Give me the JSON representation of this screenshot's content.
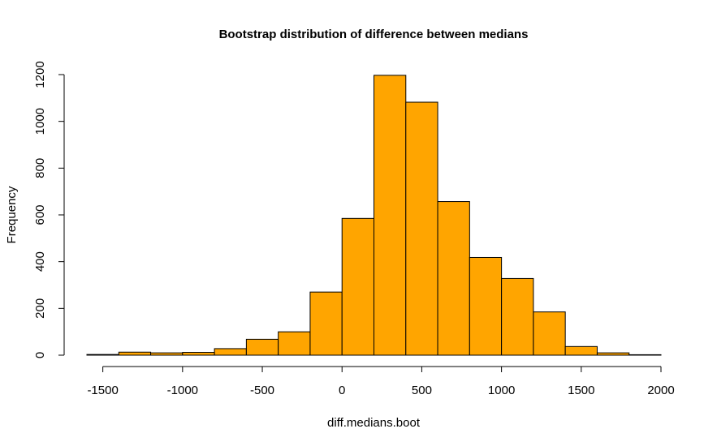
{
  "chart_data": {
    "type": "bar",
    "title": "Bootstrap distribution of difference between medians",
    "xlabel": "diff.medians.boot",
    "ylabel": "Frequency",
    "bar_color": "#FFA500",
    "edge_color": "#000000",
    "grid": false,
    "xlim": [
      -1600,
      2000
    ],
    "ylim": [
      0,
      1200
    ],
    "x_ticks": [
      -1500,
      -1000,
      -500,
      0,
      500,
      1000,
      1500,
      2000
    ],
    "y_ticks": [
      0,
      200,
      400,
      600,
      800,
      1000,
      1200
    ],
    "bins": [
      {
        "from": -1600,
        "to": -1400,
        "count": 3
      },
      {
        "from": -1400,
        "to": -1200,
        "count": 13
      },
      {
        "from": -1200,
        "to": -1000,
        "count": 10
      },
      {
        "from": -1000,
        "to": -800,
        "count": 12
      },
      {
        "from": -800,
        "to": -600,
        "count": 28
      },
      {
        "from": -600,
        "to": -400,
        "count": 68
      },
      {
        "from": -400,
        "to": -200,
        "count": 100
      },
      {
        "from": -200,
        "to": 0,
        "count": 270
      },
      {
        "from": 0,
        "to": 200,
        "count": 585
      },
      {
        "from": 200,
        "to": 400,
        "count": 1197
      },
      {
        "from": 400,
        "to": 600,
        "count": 1082
      },
      {
        "from": 600,
        "to": 800,
        "count": 657
      },
      {
        "from": 800,
        "to": 1000,
        "count": 418
      },
      {
        "from": 1000,
        "to": 1200,
        "count": 328
      },
      {
        "from": 1200,
        "to": 1400,
        "count": 185
      },
      {
        "from": 1400,
        "to": 1600,
        "count": 37
      },
      {
        "from": 1600,
        "to": 1800,
        "count": 10
      },
      {
        "from": 1800,
        "to": 2000,
        "count": 2
      }
    ]
  }
}
